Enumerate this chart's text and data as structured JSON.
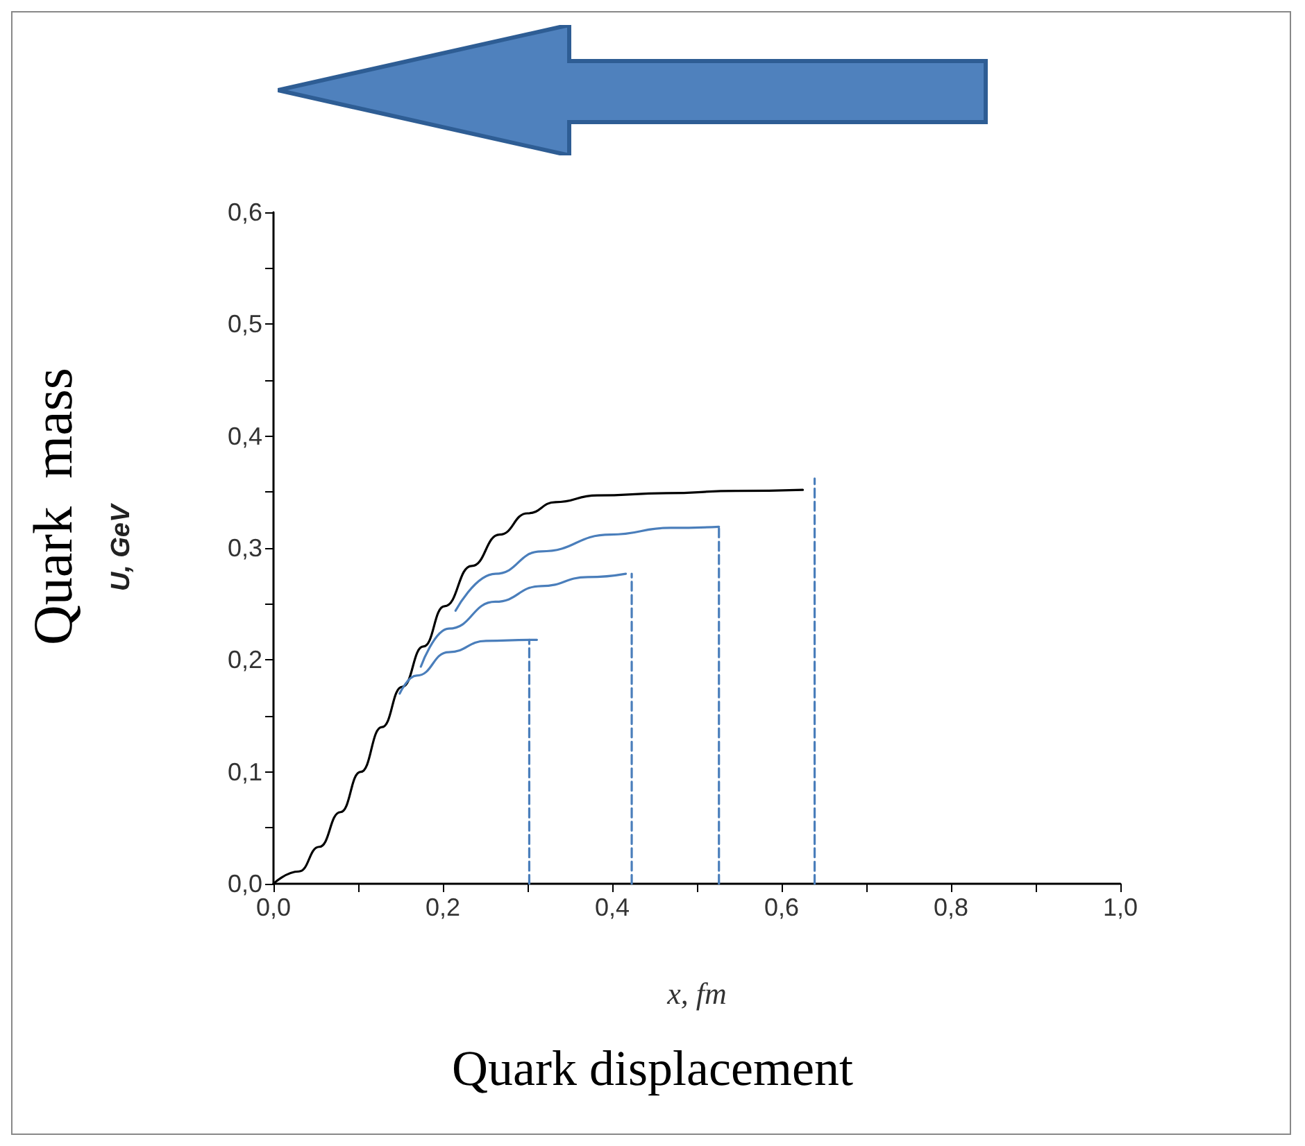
{
  "chart_data": {
    "type": "line",
    "xlabel": "x, fm",
    "ylabel": "U, GeV",
    "annotations": [
      "Quark  mass",
      "Quark displacement"
    ],
    "xlim": [
      0,
      1
    ],
    "ylim": [
      0,
      0.6
    ],
    "xticks": [
      {
        "value": 0,
        "label": "0,0"
      },
      {
        "value": 0.1,
        "label": null
      },
      {
        "value": 0.2,
        "label": "0,2"
      },
      {
        "value": 0.3,
        "label": null
      },
      {
        "value": 0.4,
        "label": "0,4"
      },
      {
        "value": 0.5,
        "label": null
      },
      {
        "value": 0.6,
        "label": "0,6"
      },
      {
        "value": 0.7,
        "label": null
      },
      {
        "value": 0.8,
        "label": "0,8"
      },
      {
        "value": 0.9,
        "label": null
      },
      {
        "value": 1,
        "label": "1,0"
      }
    ],
    "yticks": [
      {
        "value": 0,
        "label": "0,0"
      },
      {
        "value": 0.05,
        "label": null
      },
      {
        "value": 0.1,
        "label": "0,1"
      },
      {
        "value": 0.15,
        "label": null
      },
      {
        "value": 0.2,
        "label": "0,2"
      },
      {
        "value": 0.25,
        "label": null
      },
      {
        "value": 0.3,
        "label": "0,3"
      },
      {
        "value": 0.35,
        "label": null
      },
      {
        "value": 0.4,
        "label": "0,4"
      },
      {
        "value": 0.45,
        "label": null
      },
      {
        "value": 0.5,
        "label": "0,5"
      },
      {
        "value": 0.55,
        "label": null
      },
      {
        "value": 0.6,
        "label": "0,6"
      }
    ],
    "grid": false,
    "marker": "none",
    "series": [
      {
        "color": "#000000",
        "line_style": "solid",
        "x": [
          0,
          0.03,
          0.054,
          0.079,
          0.103,
          0.128,
          0.152,
          0.177,
          0.202,
          0.234,
          0.267,
          0.3,
          0.333,
          0.382,
          0.464,
          0.546,
          0.625
        ],
        "values": [
          0,
          0.011,
          0.033,
          0.064,
          0.1,
          0.14,
          0.176,
          0.212,
          0.248,
          0.284,
          0.312,
          0.331,
          0.341,
          0.347,
          0.349,
          0.351,
          0.352
        ]
      },
      {
        "color": "#4a7ebb",
        "line_style": "solid",
        "x": [
          0.149,
          0.169,
          0.207,
          0.251,
          0.302,
          0.311
        ],
        "values": [
          0.17,
          0.186,
          0.207,
          0.217,
          0.218,
          0.218
        ]
      },
      {
        "color": "#4a7ebb",
        "line_style": "solid",
        "x": [
          0.174,
          0.207,
          0.262,
          0.316,
          0.371,
          0.416
        ],
        "values": [
          0.194,
          0.228,
          0.252,
          0.266,
          0.274,
          0.277
        ]
      },
      {
        "color": "#4a7ebb",
        "line_style": "solid",
        "x": [
          0.215,
          0.262,
          0.316,
          0.398,
          0.469,
          0.526
        ],
        "values": [
          0.244,
          0.277,
          0.297,
          0.312,
          0.318,
          0.319
        ]
      },
      {
        "color": "#4a7ebb",
        "line_style": "dashed",
        "x": [
          0.302,
          0.302
        ],
        "values": [
          0,
          0.218
        ]
      },
      {
        "color": "#4a7ebb",
        "line_style": "dashed",
        "x": [
          0.423,
          0.423
        ],
        "values": [
          0,
          0.277
        ]
      },
      {
        "color": "#4a7ebb",
        "line_style": "dashed",
        "x": [
          0.526,
          0.526
        ],
        "values": [
          0,
          0.32
        ]
      },
      {
        "color": "#4a7ebb",
        "line_style": "dashed",
        "x": [
          0.639,
          0.639
        ],
        "values": [
          0,
          0.362
        ]
      }
    ]
  }
}
